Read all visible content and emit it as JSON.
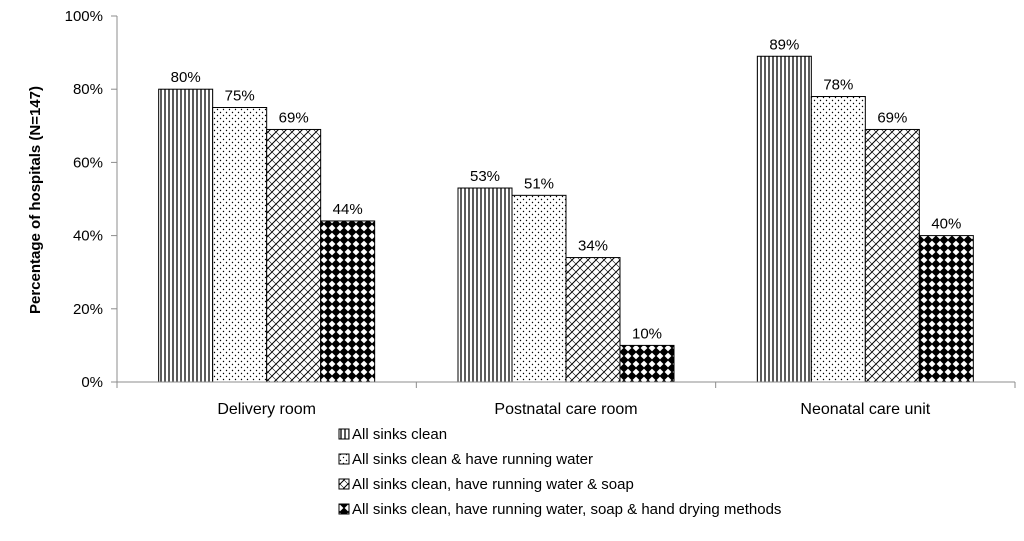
{
  "chart_data": {
    "type": "bar",
    "title": "",
    "xlabel": "",
    "ylabel": "Percentage of hospitals (N=147)",
    "ylim": [
      0,
      100
    ],
    "yticks": [
      "0%",
      "20%",
      "40%",
      "60%",
      "80%",
      "100%"
    ],
    "grid": false,
    "legend_position": "bottom",
    "categories": [
      "Delivery room",
      "Postnatal care room",
      "Neonatal care unit"
    ],
    "series": [
      {
        "name": "All sinks clean",
        "pattern": "vertical-lines",
        "values": [
          80,
          53,
          89
        ],
        "labels": [
          "80%",
          "53%",
          "89%"
        ]
      },
      {
        "name": "All sinks clean & have running water",
        "pattern": "dots",
        "values": [
          75,
          51,
          78
        ],
        "labels": [
          "75%",
          "51%",
          "78%"
        ]
      },
      {
        "name": "All sinks clean, have running water & soap",
        "pattern": "diagonal-crosshatch",
        "values": [
          69,
          34,
          69
        ],
        "labels": [
          "69%",
          "34%",
          "69%"
        ]
      },
      {
        "name": "All sinks clean, have running water, soap & hand drying methods",
        "pattern": "checker",
        "values": [
          44,
          10,
          40
        ],
        "labels": [
          "44%",
          "10%",
          "40%"
        ]
      }
    ],
    "colors": {
      "bar_stroke": "#000000",
      "axis": "#8c8c8c",
      "background": "#ffffff"
    }
  }
}
